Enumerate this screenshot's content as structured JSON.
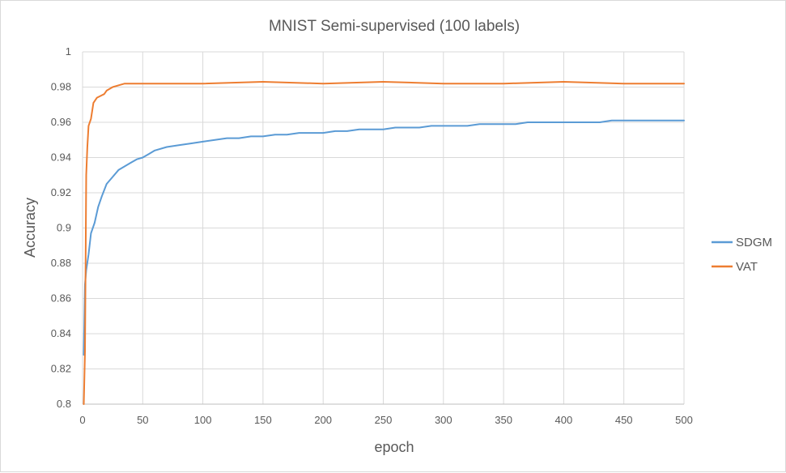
{
  "chart_data": {
    "type": "line",
    "title": "MNIST Semi-supervised (100 labels)",
    "xlabel": "epoch",
    "ylabel": "Accuracy",
    "xlim": [
      0,
      500
    ],
    "ylim": [
      0.8,
      1
    ],
    "xticks": [
      0,
      50,
      100,
      150,
      200,
      250,
      300,
      350,
      400,
      450,
      500
    ],
    "yticks": [
      0.8,
      0.82,
      0.84,
      0.86,
      0.88,
      0.9,
      0.92,
      0.94,
      0.96,
      0.98,
      1
    ],
    "ytick_labels": [
      "0.8",
      "0.82",
      "0.84",
      "0.86",
      "0.88",
      "0.9",
      "0.92",
      "0.94",
      "0.96",
      "0.98",
      "1"
    ],
    "grid": true,
    "legend_position": "right",
    "series": [
      {
        "name": "SDGM",
        "color": "#5b9bd5",
        "x": [
          1,
          2,
          3,
          5,
          7,
          10,
          13,
          16,
          20,
          25,
          30,
          35,
          40,
          45,
          50,
          55,
          60,
          70,
          80,
          90,
          100,
          110,
          120,
          130,
          140,
          150,
          160,
          170,
          180,
          190,
          200,
          210,
          220,
          230,
          240,
          250,
          260,
          270,
          280,
          290,
          300,
          310,
          320,
          330,
          340,
          350,
          360,
          370,
          380,
          390,
          400,
          410,
          420,
          430,
          440,
          450,
          460,
          470,
          480,
          490,
          500
        ],
        "y": [
          0.828,
          0.868,
          0.876,
          0.885,
          0.897,
          0.903,
          0.912,
          0.918,
          0.925,
          0.929,
          0.933,
          0.935,
          0.937,
          0.939,
          0.94,
          0.942,
          0.944,
          0.946,
          0.947,
          0.948,
          0.949,
          0.95,
          0.951,
          0.951,
          0.952,
          0.952,
          0.953,
          0.953,
          0.954,
          0.954,
          0.954,
          0.955,
          0.955,
          0.956,
          0.956,
          0.956,
          0.957,
          0.957,
          0.957,
          0.958,
          0.958,
          0.958,
          0.958,
          0.959,
          0.959,
          0.959,
          0.959,
          0.96,
          0.96,
          0.96,
          0.96,
          0.96,
          0.96,
          0.96,
          0.961,
          0.961,
          0.961,
          0.961,
          0.961,
          0.961,
          0.961
        ]
      },
      {
        "name": "VAT",
        "color": "#ed7d31",
        "x": [
          1,
          2,
          3,
          4,
          5,
          7,
          9,
          12,
          15,
          18,
          20,
          25,
          30,
          35,
          40,
          50,
          60,
          80,
          100,
          150,
          200,
          250,
          300,
          350,
          400,
          450,
          500
        ],
        "y": [
          0.8,
          0.83,
          0.93,
          0.946,
          0.958,
          0.962,
          0.971,
          0.974,
          0.975,
          0.976,
          0.978,
          0.98,
          0.981,
          0.982,
          0.982,
          0.982,
          0.982,
          0.982,
          0.982,
          0.983,
          0.982,
          0.983,
          0.982,
          0.982,
          0.983,
          0.982,
          0.982
        ]
      }
    ]
  }
}
